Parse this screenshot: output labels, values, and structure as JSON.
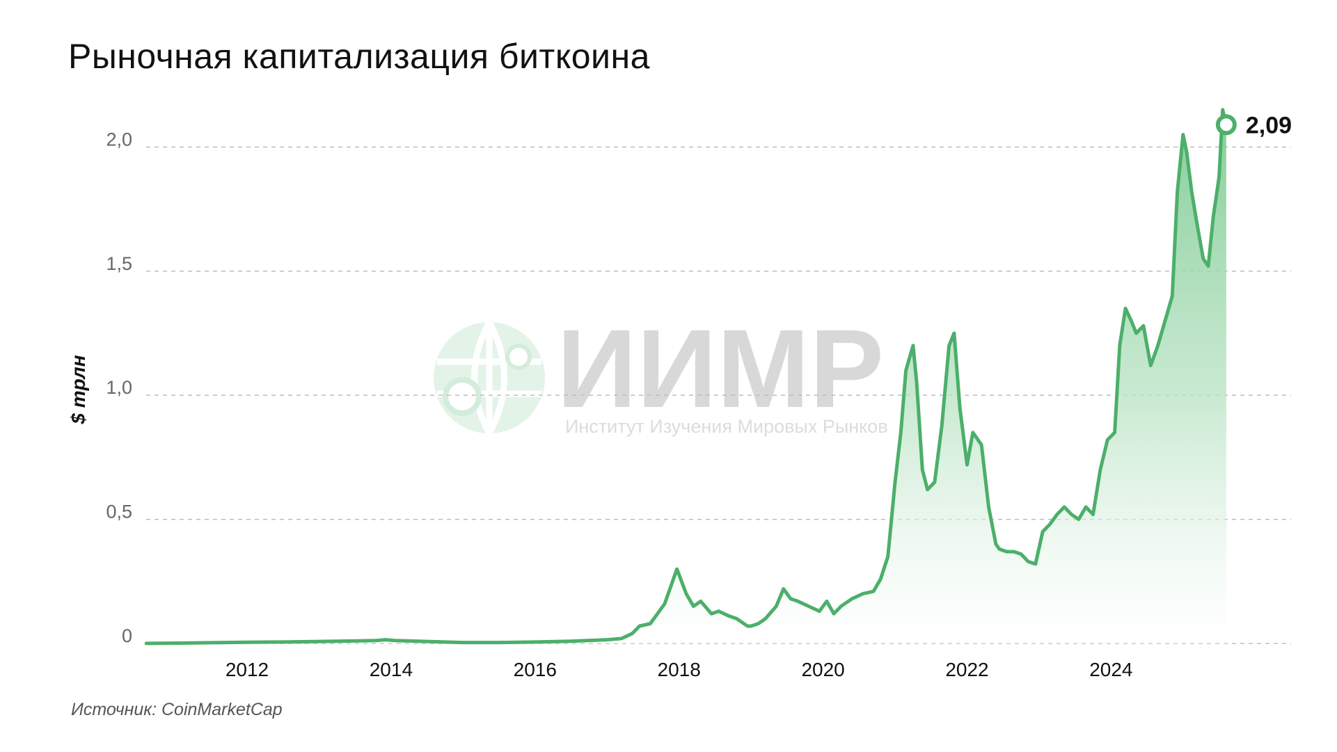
{
  "title": "Рыночная капитализация биткоина",
  "source": "Источник: CoinMarketCap",
  "colors": {
    "line": "#4caf6a",
    "fill_top": "#8fd3a2",
    "grid": "#bdbdbd",
    "watermark_globe": "#e4f3e8"
  },
  "watermark": {
    "icon": "globe-logo-icon",
    "title": "ИИМР",
    "subtitle": "Институт Изучения Мировых Рынков"
  },
  "chart_data": {
    "type": "area",
    "title": "Рыночная капитализация биткоина",
    "ylabel": "$ трлн",
    "xlabel": "",
    "xlim": [
      2010.55,
      2026.5
    ],
    "ylim": [
      0,
      2.2
    ],
    "y_ticks": [
      0,
      0.5,
      1.0,
      1.5,
      2.0
    ],
    "y_tick_labels": [
      "0",
      "0,5",
      "1,0",
      "1,5",
      "2,0"
    ],
    "x_ticks": [
      2012,
      2014,
      2016,
      2018,
      2020,
      2022,
      2024
    ],
    "x_tick_labels": [
      "2012",
      "2014",
      "2016",
      "2018",
      "2020",
      "2022",
      "2024"
    ],
    "grid": "horizontal dashed",
    "last_value": 2.09,
    "last_value_label": "2,09",
    "series": [
      {
        "x": [
          2010.6,
          2011.0,
          2011.5,
          2012.0,
          2012.5,
          2013.0,
          2013.5,
          2013.8,
          2013.92,
          2014.05,
          2014.5,
          2015.0,
          2015.5,
          2016.0,
          2016.5,
          2017.0,
          2017.2,
          2017.35,
          2017.45,
          2017.6,
          2017.7,
          2017.8,
          2017.97,
          2018.1,
          2018.2,
          2018.3,
          2018.45,
          2018.55,
          2018.7,
          2018.8,
          2018.95,
          2019.0,
          2019.1,
          2019.2,
          2019.35,
          2019.45,
          2019.55,
          2019.65,
          2019.8,
          2019.95,
          2020.05,
          2020.15,
          2020.25,
          2020.4,
          2020.55,
          2020.7,
          2020.8,
          2020.9,
          2021.0,
          2021.08,
          2021.15,
          2021.25,
          2021.3,
          2021.38,
          2021.45,
          2021.55,
          2021.65,
          2021.75,
          2021.82,
          2021.9,
          2022.0,
          2022.08,
          2022.2,
          2022.3,
          2022.4,
          2022.45,
          2022.55,
          2022.65,
          2022.75,
          2022.85,
          2022.95,
          2023.05,
          2023.15,
          2023.25,
          2023.35,
          2023.45,
          2023.55,
          2023.65,
          2023.75,
          2023.85,
          2023.95,
          2024.05,
          2024.12,
          2024.2,
          2024.28,
          2024.35,
          2024.45,
          2024.55,
          2024.65,
          2024.75,
          2024.85,
          2024.92,
          2025.0,
          2025.05,
          2025.12,
          2025.2,
          2025.28,
          2025.35,
          2025.42,
          2025.5,
          2025.55,
          2025.6
        ],
        "y": [
          0.0004,
          0.0015,
          0.003,
          0.005,
          0.006,
          0.008,
          0.01,
          0.012,
          0.015,
          0.012,
          0.008,
          0.004,
          0.004,
          0.006,
          0.009,
          0.015,
          0.02,
          0.04,
          0.07,
          0.08,
          0.12,
          0.16,
          0.3,
          0.2,
          0.15,
          0.17,
          0.12,
          0.13,
          0.11,
          0.1,
          0.07,
          0.07,
          0.08,
          0.1,
          0.15,
          0.22,
          0.18,
          0.17,
          0.15,
          0.13,
          0.17,
          0.12,
          0.15,
          0.18,
          0.2,
          0.21,
          0.26,
          0.35,
          0.65,
          0.85,
          1.1,
          1.2,
          1.05,
          0.7,
          0.62,
          0.65,
          0.88,
          1.2,
          1.25,
          0.95,
          0.72,
          0.85,
          0.8,
          0.55,
          0.4,
          0.38,
          0.37,
          0.37,
          0.36,
          0.33,
          0.32,
          0.45,
          0.48,
          0.52,
          0.55,
          0.52,
          0.5,
          0.55,
          0.52,
          0.7,
          0.82,
          0.85,
          1.2,
          1.35,
          1.3,
          1.25,
          1.28,
          1.12,
          1.2,
          1.3,
          1.4,
          1.82,
          2.05,
          1.98,
          1.82,
          1.68,
          1.55,
          1.52,
          1.72,
          1.88,
          2.15,
          2.09
        ]
      }
    ]
  }
}
